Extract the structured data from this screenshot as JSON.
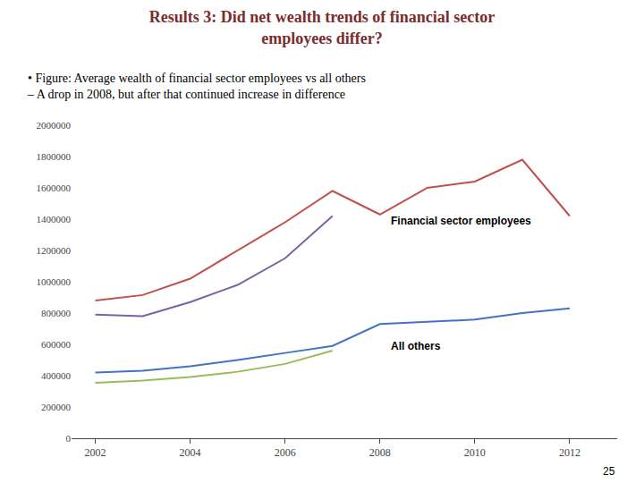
{
  "chart_data": {
    "type": "line",
    "title": "Results 3: Did net wealth trends of financial sector\nemployees differ?",
    "subtitle": "• Figure: Average wealth of financial sector employees vs all others\n– A drop in 2008, but after that continued increase in difference",
    "series": [
      {
        "color": "#C0504D",
        "x": [
          2002,
          2003,
          2004,
          2005,
          2006,
          2007,
          2008,
          2009,
          2010,
          2011,
          2012
        ],
        "values": [
          880000,
          915000,
          1020000,
          1200000,
          1380000,
          1580000,
          1430000,
          1600000,
          1640000,
          1780000,
          1420000
        ]
      },
      {
        "color": "#7B62A0",
        "x": [
          2002,
          2003,
          2004,
          2005,
          2006,
          2007
        ],
        "values": [
          790000,
          780000,
          870000,
          980000,
          1150000,
          1420000
        ]
      },
      {
        "color": "#4472C4",
        "x": [
          2002,
          2003,
          2004,
          2005,
          2006,
          2007,
          2008,
          2009,
          2010,
          2011,
          2012
        ],
        "values": [
          420000,
          432000,
          460000,
          500000,
          545000,
          590000,
          730000,
          742000,
          758000,
          800000,
          830000
        ]
      },
      {
        "color": "#9BBB59",
        "x": [
          2002,
          2003,
          2004,
          2005,
          2006,
          2007
        ],
        "values": [
          355000,
          368000,
          392000,
          425000,
          475000,
          560000
        ]
      }
    ],
    "annotations": [
      {
        "text": "Financial sector employees",
        "x": 2008.2,
        "y": 1390000
      },
      {
        "text": "All others",
        "x": 2008.2,
        "y": 590000
      },
      {
        "text": "25"
      }
    ],
    "xlim": [
      2001.5,
      2013.0
    ],
    "xticks": [
      2002,
      2004,
      2006,
      2008,
      2010,
      2012
    ],
    "ylim": [
      0,
      2000000
    ],
    "yticks": [
      0,
      200000,
      400000,
      600000,
      800000,
      1000000,
      1200000,
      1400000,
      1600000,
      1800000,
      2000000
    ],
    "grid": false
  }
}
